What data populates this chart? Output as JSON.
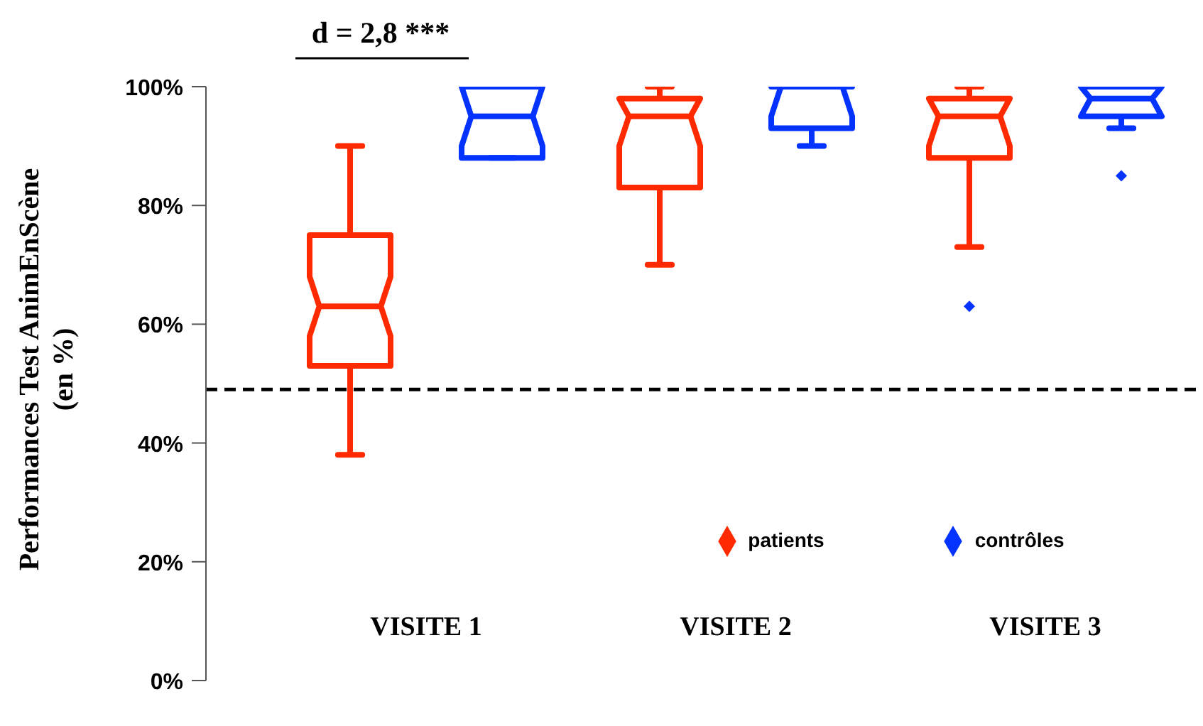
{
  "chart_data": {
    "type": "box",
    "ylabel": "Performances Test AnimEnScène\n(en %)",
    "categories": [
      "VISITE 1",
      "VISITE 2",
      "VISITE 3"
    ],
    "series": [
      {
        "name": "patients",
        "color": "#ff2a00",
        "boxes": [
          {
            "low": 38,
            "q1": 53,
            "median": 63,
            "q3": 75,
            "high": 90
          },
          {
            "low": 70,
            "q1": 83,
            "median": 95,
            "q3": 98,
            "high": 100
          },
          {
            "low": 73,
            "q1": 88,
            "median": 95,
            "q3": 98,
            "high": 100,
            "outliers": [
              63
            ]
          }
        ]
      },
      {
        "name": "contrôles",
        "color": "#0433ff",
        "boxes": [
          {
            "low": 88,
            "q1": 88,
            "median": 95,
            "q3": 100,
            "high": 100
          },
          {
            "low": 90,
            "q1": 93,
            "median": 100,
            "q3": 100,
            "high": 100
          },
          {
            "low": 93,
            "q1": 95,
            "median": 98,
            "q3": 100,
            "high": 100,
            "outliers": [
              85
            ]
          }
        ]
      }
    ],
    "ylim": [
      0,
      100
    ],
    "yticks": [
      {
        "value": 0,
        "label": "0%"
      },
      {
        "value": 20,
        "label": "20%"
      },
      {
        "value": 40,
        "label": "40%"
      },
      {
        "value": 60,
        "label": "60%"
      },
      {
        "value": 80,
        "label": "80%"
      },
      {
        "value": 100,
        "label": "100%"
      }
    ],
    "ref_lines": [
      {
        "axis": "y",
        "value": 49,
        "color": "#000000",
        "line_style": "dashed"
      }
    ],
    "annotations": [
      "d = 2,8 ***"
    ],
    "grid": false,
    "legend": "bottom right"
  }
}
